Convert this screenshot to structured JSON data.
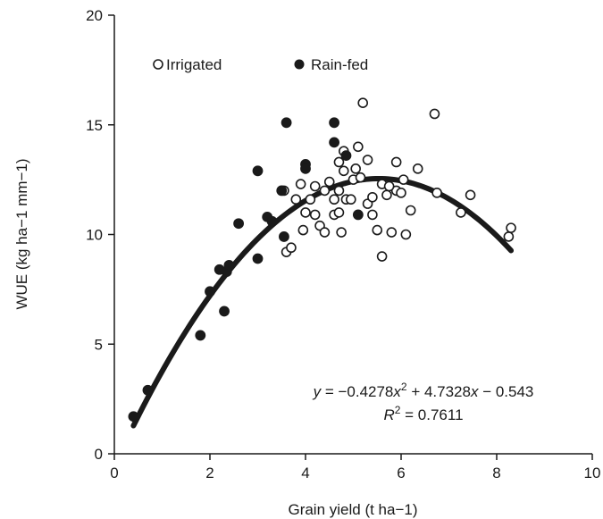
{
  "chart_data": {
    "type": "scatter",
    "xlabel": "Grain yield (t ha−1)",
    "ylabel": "WUE (kg ha−1 mm−1)",
    "xlim": [
      0,
      10
    ],
    "ylim": [
      0,
      20
    ],
    "xticks": [
      0,
      2,
      4,
      6,
      8,
      10
    ],
    "yticks": [
      0,
      5,
      10,
      15,
      20
    ],
    "xtick_labels": [
      "0",
      "2",
      "4",
      "6",
      "8",
      "10"
    ],
    "ytick_labels": [
      "0",
      "5",
      "10",
      "15",
      "20"
    ],
    "grid": false,
    "legend_position": "top-left",
    "series": [
      {
        "name": "Irrigated",
        "marker": "open-circle",
        "color": "#1a1a1a",
        "points": [
          [
            3.6,
            9.2
          ],
          [
            3.7,
            9.4
          ],
          [
            3.8,
            11.6
          ],
          [
            3.9,
            12.3
          ],
          [
            3.95,
            10.2
          ],
          [
            4.0,
            11.0
          ],
          [
            4.1,
            11.6
          ],
          [
            4.2,
            12.2
          ],
          [
            4.2,
            10.9
          ],
          [
            4.3,
            10.4
          ],
          [
            4.4,
            12.0
          ],
          [
            4.4,
            10.1
          ],
          [
            4.5,
            12.4
          ],
          [
            4.6,
            11.6
          ],
          [
            4.6,
            10.9
          ],
          [
            4.7,
            13.3
          ],
          [
            4.7,
            12.0
          ],
          [
            4.7,
            11.0
          ],
          [
            4.75,
            10.1
          ],
          [
            4.8,
            13.8
          ],
          [
            4.8,
            12.9
          ],
          [
            4.85,
            11.6
          ],
          [
            4.95,
            11.6
          ],
          [
            5.0,
            12.5
          ],
          [
            5.05,
            13.0
          ],
          [
            5.1,
            14.0
          ],
          [
            5.15,
            12.6
          ],
          [
            5.2,
            16.0
          ],
          [
            5.3,
            13.4
          ],
          [
            5.3,
            11.4
          ],
          [
            5.4,
            11.7
          ],
          [
            5.4,
            10.9
          ],
          [
            5.5,
            10.2
          ],
          [
            5.6,
            12.3
          ],
          [
            5.6,
            9.0
          ],
          [
            5.7,
            11.8
          ],
          [
            5.8,
            10.1
          ],
          [
            5.9,
            13.3
          ],
          [
            5.9,
            12.0
          ],
          [
            6.0,
            11.9
          ],
          [
            6.05,
            12.5
          ],
          [
            6.1,
            10.0
          ],
          [
            6.2,
            11.1
          ],
          [
            6.35,
            13.0
          ],
          [
            6.7,
            15.5
          ],
          [
            6.75,
            11.9
          ],
          [
            7.25,
            11.0
          ],
          [
            7.45,
            11.8
          ],
          [
            8.25,
            9.9
          ],
          [
            8.3,
            10.3
          ],
          [
            3.55,
            12.0
          ],
          [
            5.75,
            12.2
          ]
        ]
      },
      {
        "name": "Rain-fed",
        "marker": "filled-circle",
        "color": "#1a1a1a",
        "points": [
          [
            0.4,
            1.7
          ],
          [
            0.7,
            2.9
          ],
          [
            1.8,
            5.4
          ],
          [
            2.0,
            7.4
          ],
          [
            2.2,
            8.4
          ],
          [
            2.3,
            6.5
          ],
          [
            2.35,
            8.3
          ],
          [
            2.4,
            8.6
          ],
          [
            2.6,
            10.5
          ],
          [
            3.0,
            12.9
          ],
          [
            3.0,
            8.9
          ],
          [
            3.2,
            10.8
          ],
          [
            3.3,
            10.6
          ],
          [
            3.5,
            12.0
          ],
          [
            3.55,
            9.9
          ],
          [
            3.6,
            15.1
          ],
          [
            4.0,
            13.2
          ],
          [
            4.0,
            13.0
          ],
          [
            4.6,
            15.1
          ],
          [
            4.6,
            14.2
          ],
          [
            4.85,
            13.6
          ],
          [
            5.1,
            10.9
          ]
        ]
      }
    ],
    "fit": {
      "type": "quadratic",
      "coefficients": {
        "a": -0.4278,
        "b": 4.7328,
        "c": -0.543
      },
      "x_range": [
        0.4,
        8.3
      ],
      "color": "#1a1a1a"
    },
    "annotations": {
      "equation": {
        "y": "y",
        "eq1": " = −0.4278",
        "x1": "x",
        "sup": "2",
        "eq2": " + 4.7328",
        "x2": "x",
        "eq3": " − 0.543"
      },
      "r2": {
        "R": "R",
        "sup": "2",
        "value": " = 0.7611"
      }
    }
  }
}
